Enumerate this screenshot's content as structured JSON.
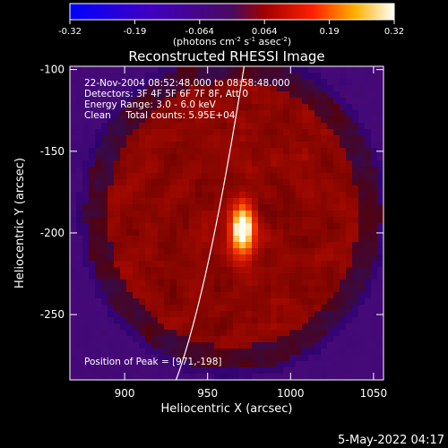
{
  "colorbar": {
    "ticks": [
      "-0.32",
      "-0.19",
      "-0.064",
      "0.064",
      "0.19",
      "0.32"
    ],
    "range": [
      -0.32,
      0.32
    ],
    "units_main": "(photons cm",
    "units_sup1": "-2",
    "units_mid1": " s",
    "units_sup2": "-1",
    "units_mid2": " asec",
    "units_sup3": "-2",
    "units_end": ")"
  },
  "chart_data": {
    "type": "heatmap",
    "title": "Reconstructed RHESSI Image",
    "xlabel": "Heliocentric X (arcsec)",
    "ylabel": "Heliocentric Y (arcsec)",
    "xlim": [
      867,
      1056
    ],
    "ylim": [
      -290,
      -98
    ],
    "xticks": [
      900,
      950,
      1000,
      1050
    ],
    "yticks": [
      -100,
      -150,
      -200,
      -250
    ],
    "colormap": "hot/blue-purple diverging",
    "peak": {
      "x": 971,
      "y": -198,
      "value": 0.32
    },
    "limb_arc_points": [
      [
        931,
        -290
      ],
      [
        951,
        -215
      ],
      [
        972,
        -98
      ]
    ],
    "annotations": [
      "22-Nov-2004 08:52:48.000 to 08:58:48.000",
      "Detectors: 3F 4F 5F 6F 7F 8F, Att 0",
      "Energy Range: 3.0 - 6.0 keV",
      "Clean     Total counts: 5.95E+04"
    ],
    "peak_label": "Position of Peak = [971,-198]"
  },
  "footer": {
    "timestamp": "5-May-2022 04:17"
  },
  "colors": {
    "background": "#000000",
    "axes": "#ffffff"
  }
}
